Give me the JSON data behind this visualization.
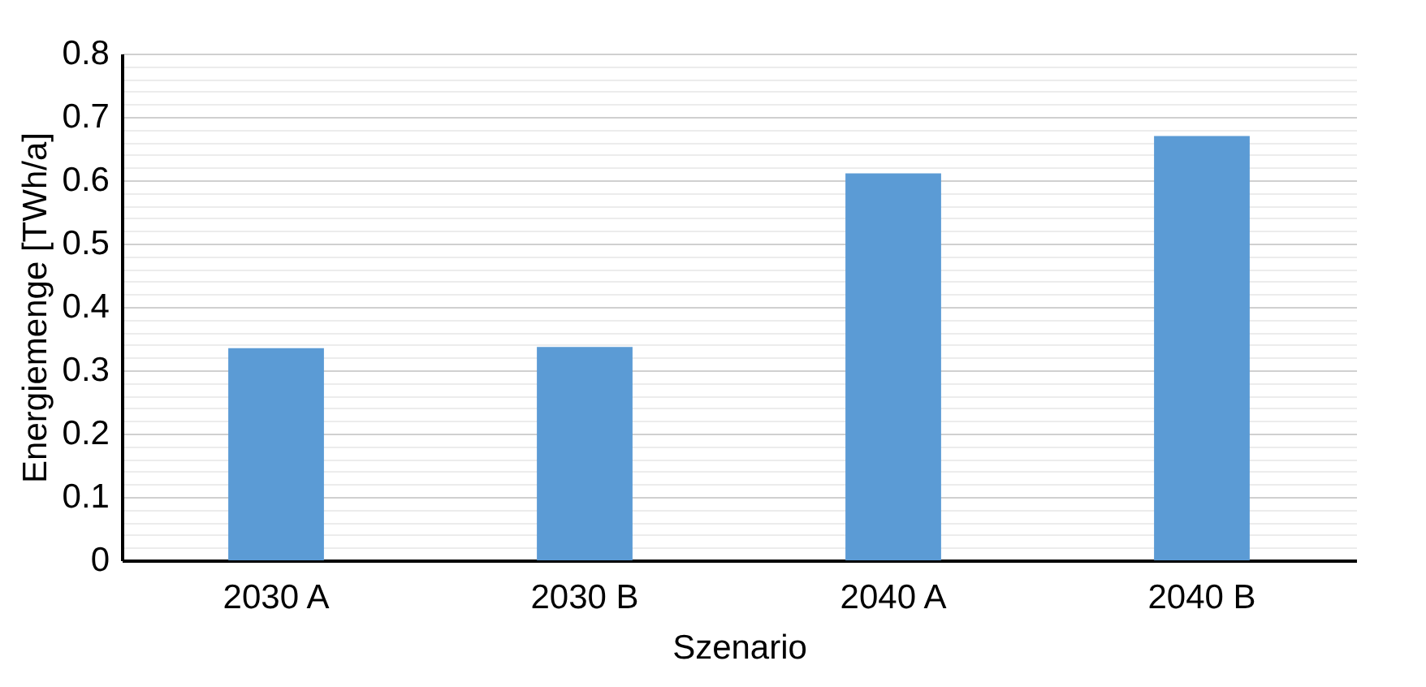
{
  "chart_data": {
    "type": "bar",
    "xlabel": "Szenario",
    "ylabel": "Energiemenge [TWh/a]",
    "categories": [
      "2030 A",
      "2030 B",
      "2040 A",
      "2040 B"
    ],
    "values": [
      0.335,
      0.337,
      0.611,
      0.67
    ],
    "color": "#5b9bd5",
    "ylim": [
      0,
      0.8
    ],
    "yticks": [
      0,
      {
        "value": 0.02,
        "label": null
      },
      {
        "value": 0.04,
        "label": null
      },
      {
        "value": 0.06,
        "label": null
      },
      {
        "value": 0.08,
        "label": null
      },
      0.1,
      {
        "value": 0.12,
        "label": null
      },
      {
        "value": 0.14,
        "label": null
      },
      {
        "value": 0.16,
        "label": null
      },
      {
        "value": 0.18,
        "label": null
      },
      0.2,
      {
        "value": 0.22,
        "label": null
      },
      {
        "value": 0.24,
        "label": null
      },
      {
        "value": 0.26,
        "label": null
      },
      {
        "value": 0.28,
        "label": null
      },
      0.3,
      {
        "value": 0.32,
        "label": null
      },
      {
        "value": 0.34,
        "label": null
      },
      {
        "value": 0.36,
        "label": null
      },
      {
        "value": 0.38,
        "label": null
      },
      0.4,
      {
        "value": 0.42,
        "label": null
      },
      {
        "value": 0.44,
        "label": null
      },
      {
        "value": 0.46,
        "label": null
      },
      {
        "value": 0.48,
        "label": null
      },
      0.5,
      {
        "value": 0.52,
        "label": null
      },
      {
        "value": 0.54,
        "label": null
      },
      {
        "value": 0.56,
        "label": null
      },
      {
        "value": 0.58,
        "label": null
      },
      0.6,
      {
        "value": 0.62,
        "label": null
      },
      {
        "value": 0.64,
        "label": null
      },
      {
        "value": 0.66,
        "label": null
      },
      {
        "value": 0.68,
        "label": null
      },
      0.7,
      {
        "value": 0.72,
        "label": null
      },
      {
        "value": 0.74,
        "label": null
      },
      {
        "value": 0.76,
        "label": null
      },
      {
        "value": 0.78,
        "label": null
      },
      0.8
    ],
    "grid": "y"
  }
}
